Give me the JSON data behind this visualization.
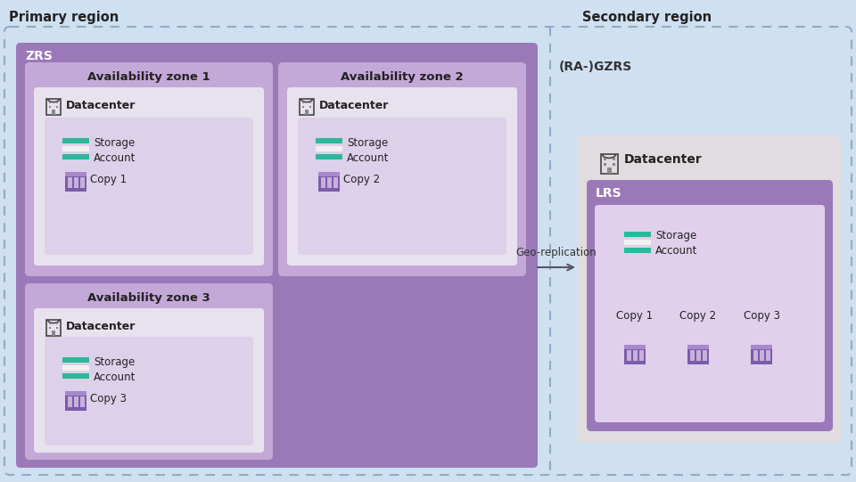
{
  "bg_outer": "#cfe0f0",
  "color_zrs_box": "#9b79b8",
  "color_avzone_box": "#c4a8d8",
  "color_datacenter_box": "#e8e2ee",
  "color_storage_inner": "#ddd0ea",
  "color_lrs_box": "#9b79b8",
  "color_lrs_inner": "#e0d0ec",
  "color_datacenter_secondary_outer": "#e0dce0",
  "color_storage_teal1": "#2db89a",
  "color_storage_white": "#f0f0f0",
  "color_storage_teal2": "#2db89a",
  "color_copy_purple": "#7a5ca8",
  "color_copy_mid": "#a888cc",
  "color_copy_light": "#c8b0dc",
  "color_arrow": "#555566",
  "color_border_dashed": "#90aac8",
  "text_primary_region": "Primary region",
  "text_secondary_region": "Secondary region",
  "text_zrs": "ZRS",
  "text_ragzrs": "(RA-)GZRS",
  "text_lrs": "LRS",
  "text_az1": "Availability zone 1",
  "text_az2": "Availability zone 2",
  "text_az3": "Availability zone 3",
  "text_datacenter": "Datacenter",
  "text_storage": "Storage\nAccount",
  "text_geo": "Geo-replication",
  "text_copy1": "Copy 1",
  "text_copy2": "Copy 2",
  "text_copy3": "Copy 3"
}
